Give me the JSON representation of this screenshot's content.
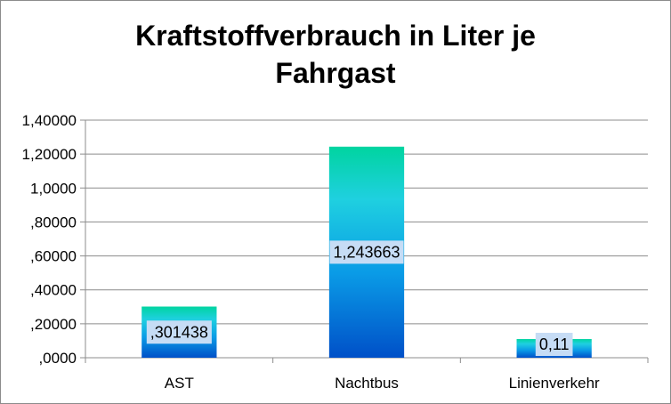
{
  "chart_data": {
    "type": "bar",
    "title_line1": "Kraftstoffverbrauch in Liter je",
    "title_line2": "Fahrgast",
    "categories": [
      "AST",
      "Nachtbus",
      "Linienverkehr"
    ],
    "values": [
      0.301438,
      1.243663,
      0.11
    ],
    "data_labels": [
      ",301438",
      "1,243663",
      "0,11"
    ],
    "ytick_values": [
      0,
      0.2,
      0.4,
      0.6,
      0.8,
      1.0,
      1.2,
      1.4
    ],
    "ytick_labels": [
      ",0000",
      ",20000",
      ",40000",
      ",60000",
      ",80000",
      "1,0000",
      "1,20000",
      "1,40000"
    ],
    "ylim": [
      0,
      1.4
    ],
    "grid": true,
    "legend": "none",
    "colors": {
      "bar_top": "#00d4a0",
      "bar_mid": "#1fd0e0",
      "bar_low": "#0a9be6",
      "bar_bottom": "#0050c8",
      "label_bg": "#c6dcf5",
      "grid": "#8c8c8c",
      "axis": "#8c8c8c"
    }
  }
}
